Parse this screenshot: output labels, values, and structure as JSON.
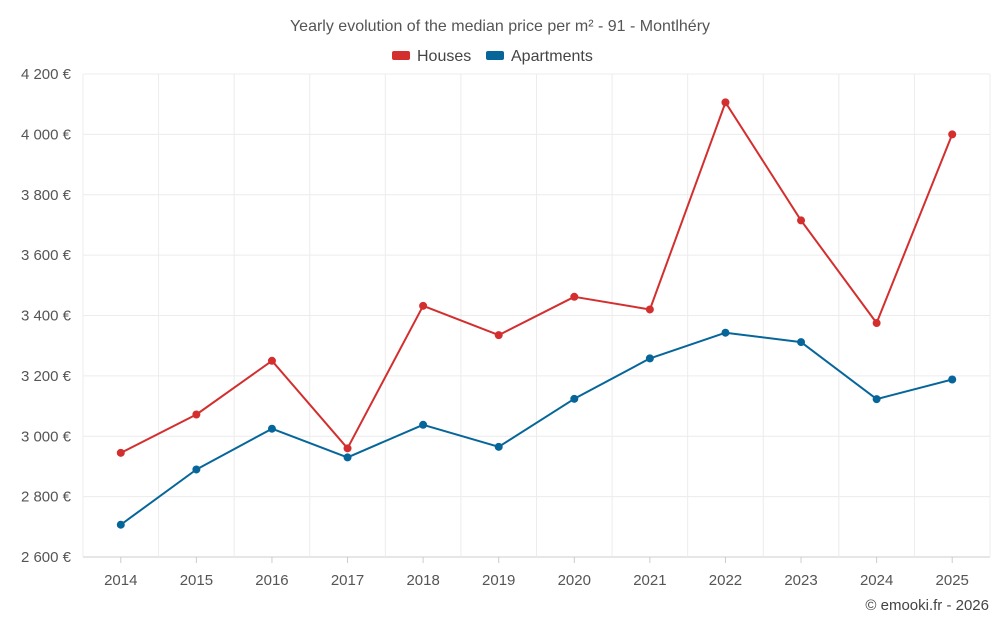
{
  "chart_data": {
    "type": "line",
    "title": "Yearly evolution of the median price per m² - 91 - Montlhéry",
    "categories": [
      "2014",
      "2015",
      "2016",
      "2017",
      "2018",
      "2019",
      "2020",
      "2021",
      "2022",
      "2023",
      "2024",
      "2025"
    ],
    "series": [
      {
        "name": "Houses",
        "color": "#d32f2f",
        "values": [
          2945,
          3072,
          3250,
          2960,
          3432,
          3335,
          3462,
          3420,
          4106,
          3715,
          3375,
          4000
        ]
      },
      {
        "name": "Apartments",
        "color": "#06669a",
        "values": [
          2707,
          2890,
          3025,
          2930,
          3038,
          2965,
          3124,
          3258,
          3343,
          3312,
          3123,
          3188
        ]
      }
    ],
    "ylim": [
      2600,
      4200
    ],
    "yticks": [
      2600,
      2800,
      3000,
      3200,
      3400,
      3600,
      3800,
      4000,
      4200
    ],
    "ytick_labels": [
      "2 600 €",
      "2 800 €",
      "3 000 €",
      "3 200 €",
      "3 400 €",
      "3 600 €",
      "3 800 €",
      "4 000 €",
      "4 200 €"
    ],
    "xlabel": "",
    "ylabel": "",
    "grid": true,
    "legend_position": "top-center"
  },
  "credit": "© emooki.fr - 2026"
}
